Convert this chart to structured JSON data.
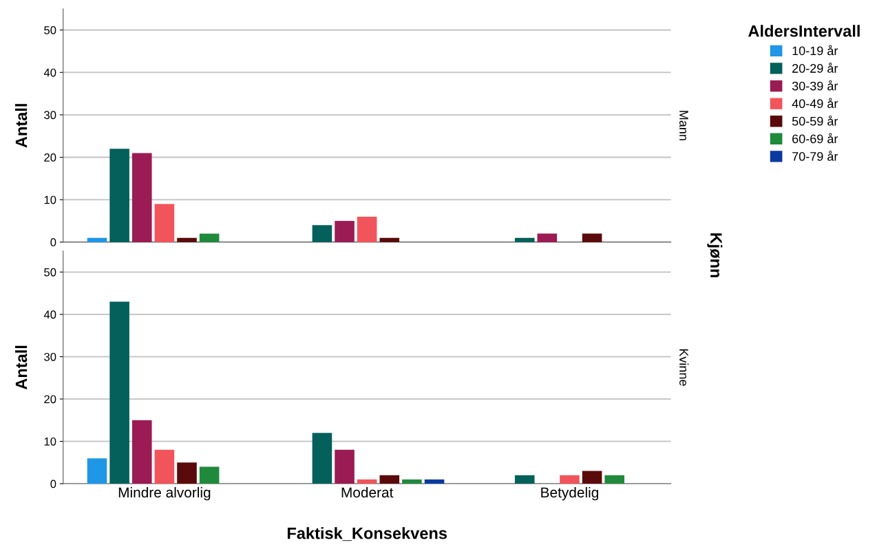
{
  "chart_data": [
    {
      "type": "bar",
      "categories": [
        null,
        null,
        null
      ],
      "ylabel": "Antall",
      "y2label": "Mann",
      "legend_title": "AldersIntervall",
      "legend": "top right",
      "annotations": [
        "Kjønn"
      ],
      "ylim": [
        0,
        55
      ],
      "yticks": [
        0,
        10,
        20,
        30,
        40,
        50
      ],
      "grid": "y",
      "tick_labels": "y",
      "series": [
        {
          "name": "10-19 år",
          "color": "#1f96e6",
          "values": [
            1,
            null,
            null
          ]
        },
        {
          "name": "20-29 år",
          "color": "#04605a",
          "values": [
            22,
            4,
            1
          ]
        },
        {
          "name": "30-39 år",
          "color": "#9b1b54",
          "values": [
            21,
            5,
            2
          ]
        },
        {
          "name": "40-49 år",
          "color": "#f2545b",
          "values": [
            9,
            6,
            null
          ]
        },
        {
          "name": "50-59 år",
          "color": "#5a0a0a",
          "values": [
            1,
            1,
            2
          ]
        },
        {
          "name": "60-69 år",
          "color": "#1f8a3c",
          "values": [
            2,
            null,
            null
          ]
        },
        {
          "name": "70-79 år",
          "color": "#0a3aa0",
          "values": [
            null,
            null,
            null
          ]
        }
      ]
    },
    {
      "type": "bar",
      "categories": [
        "Mindre alvorlig",
        "Moderat",
        "Betydelig"
      ],
      "xlabel": "Faktisk_Konsekvens",
      "ylabel": "Antall",
      "y2label": "Kvinne",
      "ylim": [
        0,
        55
      ],
      "yticks": [
        0,
        10,
        20,
        30,
        40,
        50
      ],
      "grid": "y",
      "series": [
        {
          "color": "#1f96e6",
          "values": [
            6,
            null,
            null
          ]
        },
        {
          "color": "#04605a",
          "values": [
            43,
            12,
            2
          ]
        },
        {
          "color": "#9b1b54",
          "values": [
            15,
            8,
            null
          ]
        },
        {
          "color": "#f2545b",
          "values": [
            8,
            1,
            2
          ]
        },
        {
          "color": "#5a0a0a",
          "values": [
            5,
            2,
            3
          ]
        },
        {
          "color": "#1f8a3c",
          "values": [
            4,
            1,
            2
          ]
        },
        {
          "color": "#0a3aa0",
          "values": [
            null,
            1,
            null
          ]
        }
      ]
    }
  ]
}
